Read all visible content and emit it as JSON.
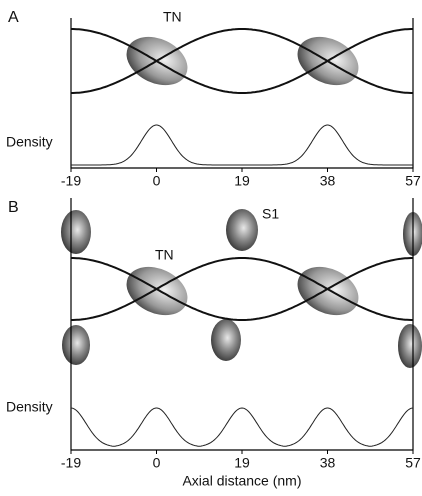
{
  "panels": [
    {
      "label": "A",
      "annotations": [
        "TN"
      ],
      "y_label": "Density",
      "xlim": [
        -19,
        57
      ],
      "xticks": [
        -19,
        0,
        19,
        38,
        57
      ]
    },
    {
      "label": "B",
      "annotations": [
        "TN",
        "S1"
      ],
      "y_label": "Density",
      "xlim": [
        -19,
        57
      ],
      "xticks": [
        -19,
        0,
        19,
        38,
        57
      ]
    }
  ],
  "x_axis_label": "Axial distance (nm)"
}
